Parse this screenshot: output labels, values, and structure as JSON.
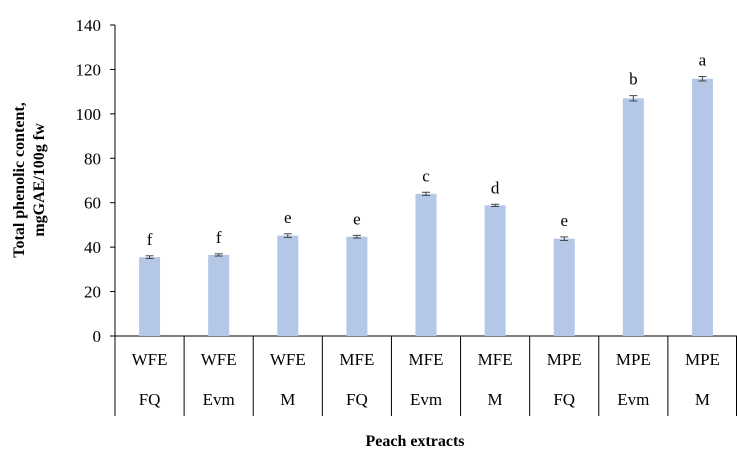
{
  "chart_data": {
    "type": "bar",
    "xlabel": "Peach extracts",
    "ylabel_lines": [
      "Total phenolic content,",
      "mgGAE/100g fw"
    ],
    "ylim": [
      0,
      140
    ],
    "yticks": [
      0,
      20,
      40,
      60,
      80,
      100,
      120,
      140
    ],
    "grid": false,
    "legend": "none",
    "bar_color": "#b4c7e7",
    "categories": [
      {
        "top": "WFE",
        "bottom": "FQ"
      },
      {
        "top": "WFE",
        "bottom": "Evm"
      },
      {
        "top": "WFE",
        "bottom": "M"
      },
      {
        "top": "MFE",
        "bottom": "FQ"
      },
      {
        "top": "MFE",
        "bottom": "Evm"
      },
      {
        "top": "MFE",
        "bottom": "M"
      },
      {
        "top": "MPE",
        "bottom": "FQ"
      },
      {
        "top": "MPE",
        "bottom": "Evm"
      },
      {
        "top": "MPE",
        "bottom": "M"
      }
    ],
    "values": [
      35.5,
      36.5,
      45.2,
      44.7,
      64.0,
      58.8,
      43.8,
      107.0,
      115.8
    ],
    "errors": [
      0.6,
      0.5,
      0.8,
      0.6,
      0.7,
      0.5,
      0.8,
      1.2,
      1.0
    ],
    "significance": [
      "f",
      "f",
      "e",
      "e",
      "c",
      "d",
      "e",
      "b",
      "a"
    ]
  }
}
